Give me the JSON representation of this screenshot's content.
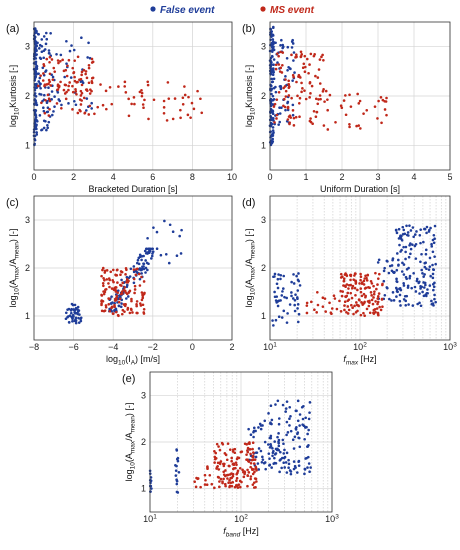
{
  "legend": {
    "entries": [
      {
        "label": "False event",
        "color": "#1f3d99"
      },
      {
        "label": "MS event",
        "color": "#c0281a"
      }
    ],
    "placement": "top-center"
  },
  "chart_data": [
    {
      "panel": "(a)",
      "type": "scatter",
      "xlabel": "Bracketed Duration [s]",
      "ylabel": "log10Kurtosis [-]",
      "xscale": "linear",
      "xlim": [
        0,
        10
      ],
      "ylim": [
        0.5,
        3.5
      ],
      "xticks": [
        0,
        2,
        4,
        6,
        8,
        10
      ],
      "yticks": [
        1,
        2,
        3
      ],
      "grid": true,
      "series": [
        {
          "name": "False event",
          "color": "#1f3d99",
          "clusters": [
            {
              "x": [
                0,
                0.15
              ],
              "y": [
                1.0,
                3.4
              ],
              "n": 120
            },
            {
              "x": [
                0.15,
                1.0
              ],
              "y": [
                1.3,
                3.3
              ],
              "n": 70
            },
            {
              "x": [
                1.0,
                3.0
              ],
              "y": [
                1.7,
                3.2
              ],
              "n": 35
            }
          ]
        },
        {
          "name": "MS event",
          "color": "#c0281a",
          "clusters": [
            {
              "x": [
                0.2,
                3.0
              ],
              "y": [
                1.6,
                2.8
              ],
              "n": 110
            },
            {
              "x": [
                3.0,
                8.5
              ],
              "y": [
                1.5,
                2.3
              ],
              "n": 50
            }
          ]
        }
      ]
    },
    {
      "panel": "(b)",
      "type": "scatter",
      "xlabel": "Uniform Duration [s]",
      "ylabel": "log10Kurtosis [-]",
      "xscale": "linear",
      "xlim": [
        0,
        5
      ],
      "ylim": [
        0.5,
        3.5
      ],
      "xticks": [
        0,
        1,
        2,
        3,
        4,
        5
      ],
      "yticks": [
        1,
        2,
        3
      ],
      "grid": true,
      "series": [
        {
          "name": "False event",
          "color": "#1f3d99",
          "clusters": [
            {
              "x": [
                0,
                0.1
              ],
              "y": [
                1.0,
                3.4
              ],
              "n": 120
            },
            {
              "x": [
                0.1,
                0.7
              ],
              "y": [
                1.4,
                3.2
              ],
              "n": 60
            }
          ]
        },
        {
          "name": "MS event",
          "color": "#c0281a",
          "clusters": [
            {
              "x": [
                0.1,
                1.5
              ],
              "y": [
                1.4,
                2.9
              ],
              "n": 110
            },
            {
              "x": [
                1.5,
                3.3
              ],
              "y": [
                1.3,
                2.1
              ],
              "n": 35
            }
          ]
        }
      ]
    },
    {
      "panel": "(c)",
      "type": "scatter",
      "xlabel": "log10(IA) [m/s]",
      "ylabel": "log10(Amax/Amean) [-]",
      "xscale": "linear",
      "xlim": [
        -8,
        2
      ],
      "ylim": [
        0.5,
        3.5
      ],
      "xticks": [
        -8,
        -6,
        -4,
        -2,
        0,
        2
      ],
      "yticks": [
        1,
        2,
        3
      ],
      "grid": true,
      "series": [
        {
          "name": "False event",
          "color": "#1f3d99",
          "clusters": [
            {
              "x": [
                -6.4,
                -5.6
              ],
              "y": [
                0.85,
                1.25
              ],
              "n": 45
            },
            {
              "x": [
                -4.2,
                -2.0
              ],
              "y": [
                1.1,
                2.4
              ],
              "n": 120,
              "diag": true
            },
            {
              "x": [
                -2.5,
                -0.5
              ],
              "y": [
                2.0,
                3.0
              ],
              "n": 18
            }
          ]
        },
        {
          "name": "MS event",
          "color": "#c0281a",
          "clusters": [
            {
              "x": [
                -4.6,
                -2.4
              ],
              "y": [
                1.0,
                2.0
              ],
              "n": 140
            }
          ]
        }
      ]
    },
    {
      "panel": "(d)",
      "type": "scatter",
      "xlabel": "fmax [Hz]",
      "ylabel": "log10(Amax/Amean) [-]",
      "xscale": "log",
      "xlim": [
        10,
        1000
      ],
      "ylim": [
        0.5,
        3.5
      ],
      "xticks": [
        10,
        100,
        1000
      ],
      "yticks": [
        1,
        2,
        3
      ],
      "grid": true,
      "series": [
        {
          "name": "False event",
          "color": "#1f3d99",
          "clusters": [
            {
              "x": [
                10,
                22
              ],
              "y": [
                0.8,
                1.9
              ],
              "n": 55
            },
            {
              "x": [
                250,
                700
              ],
              "y": [
                1.2,
                2.9
              ],
              "n": 160
            },
            {
              "x": [
                150,
                250
              ],
              "y": [
                1.3,
                2.2
              ],
              "n": 25
            }
          ]
        },
        {
          "name": "MS event",
          "color": "#c0281a",
          "clusters": [
            {
              "x": [
                60,
                180
              ],
              "y": [
                1.0,
                1.9
              ],
              "n": 140
            },
            {
              "x": [
                25,
                60
              ],
              "y": [
                1.0,
                1.5
              ],
              "n": 20
            }
          ]
        }
      ]
    },
    {
      "panel": "(e)",
      "type": "scatter",
      "xlabel": "fband [Hz]",
      "ylabel": "log10(Amax/Amean) [-]",
      "xscale": "log",
      "xlim": [
        10,
        1000
      ],
      "ylim": [
        0.5,
        3.5
      ],
      "xticks": [
        10,
        100,
        1000
      ],
      "yticks": [
        1,
        2,
        3
      ],
      "grid": true,
      "series": [
        {
          "name": "False event",
          "color": "#1f3d99",
          "clusters": [
            {
              "x": [
                10,
                10.4
              ],
              "y": [
                0.9,
                1.4
              ],
              "n": 12
            },
            {
              "x": [
                19,
                21
              ],
              "y": [
                0.9,
                1.9
              ],
              "n": 15
            },
            {
              "x": [
                200,
                600
              ],
              "y": [
                1.3,
                2.9
              ],
              "n": 130
            },
            {
              "x": [
                120,
                200
              ],
              "y": [
                1.4,
                2.5
              ],
              "n": 35
            }
          ]
        },
        {
          "name": "MS event",
          "color": "#c0281a",
          "clusters": [
            {
              "x": [
                50,
                150
              ],
              "y": [
                1.0,
                2.0
              ],
              "n": 150
            },
            {
              "x": [
                30,
                50
              ],
              "y": [
                1.0,
                1.5
              ],
              "n": 15
            }
          ]
        }
      ]
    }
  ]
}
